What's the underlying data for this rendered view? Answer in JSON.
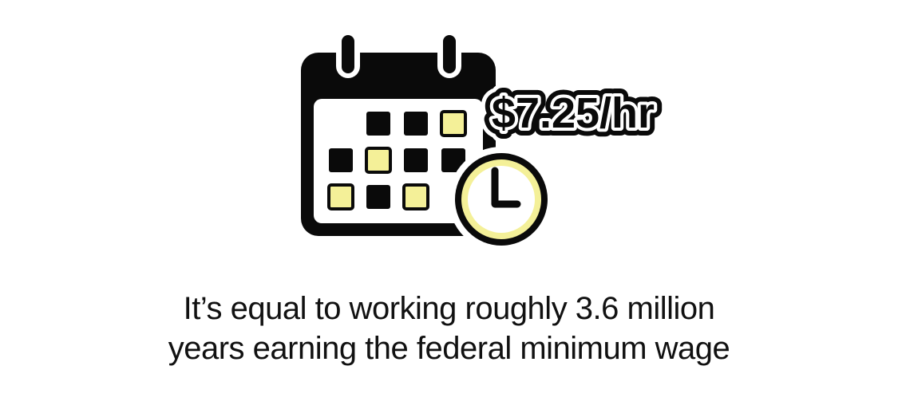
{
  "price_badge": {
    "label": "$7.25/hr"
  },
  "caption": {
    "line1": "It’s equal to working roughly 3.6 million",
    "line2": "years earning the federal minimum wage"
  },
  "icons": {
    "calendar": "calendar-icon",
    "clock": "clock-icon"
  },
  "colors": {
    "ink": "#0a0a0a",
    "highlight": "#f4f098",
    "background": "#ffffff"
  }
}
